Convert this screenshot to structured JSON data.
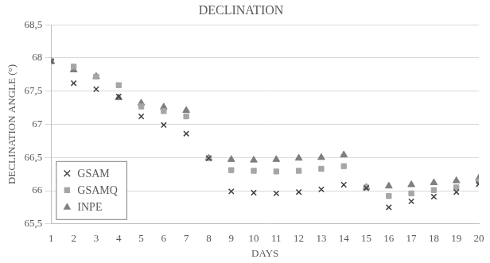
{
  "chart_data": {
    "type": "scatter",
    "title": "DECLINATION",
    "x_label": "DAYS",
    "y_label": "DECLINATION ANGLE (°)",
    "x": [
      1,
      2,
      3,
      4,
      5,
      6,
      7,
      8,
      9,
      10,
      11,
      12,
      13,
      14,
      15,
      16,
      17,
      18,
      19,
      20
    ],
    "series": [
      {
        "name": "GSAM",
        "color": "#404040",
        "marker": "x",
        "values": [
          67.95,
          67.62,
          67.53,
          67.42,
          67.12,
          66.99,
          66.86,
          66.49,
          65.99,
          65.97,
          65.96,
          65.98,
          66.02,
          66.09,
          66.04,
          65.75,
          65.84,
          65.91,
          65.98,
          66.1
        ]
      },
      {
        "name": "GSAMQ",
        "color": "#a6a6a6",
        "marker": "square",
        "values": [
          67.95,
          67.87,
          67.72,
          67.59,
          67.27,
          67.2,
          67.12,
          66.49,
          66.31,
          66.3,
          66.29,
          66.3,
          66.33,
          66.37,
          66.05,
          65.92,
          65.96,
          66.01,
          66.05,
          66.14
        ]
      },
      {
        "name": "INPE",
        "color": "#7f7f7f",
        "marker": "triangle",
        "values": [
          67.95,
          67.82,
          67.72,
          67.4,
          67.32,
          67.26,
          67.21,
          66.49,
          66.47,
          66.46,
          66.47,
          66.49,
          66.5,
          66.54,
          66.05,
          66.07,
          66.09,
          66.12,
          66.15,
          66.19
        ]
      }
    ],
    "xlim": [
      1,
      20
    ],
    "xticks": [
      1,
      2,
      3,
      4,
      5,
      6,
      7,
      8,
      9,
      10,
      11,
      12,
      13,
      14,
      15,
      16,
      17,
      18,
      19,
      20
    ],
    "ylim": [
      65.5,
      68.5
    ],
    "yticks": [
      {
        "value": 65.5,
        "label": "65,5"
      },
      66,
      {
        "value": 66.5,
        "label": "66,5"
      },
      67,
      {
        "value": 67.5,
        "label": "67,5"
      },
      68,
      {
        "value": 68.5,
        "label": "68,5"
      }
    ],
    "grid": true,
    "legend": "bottom-left"
  }
}
